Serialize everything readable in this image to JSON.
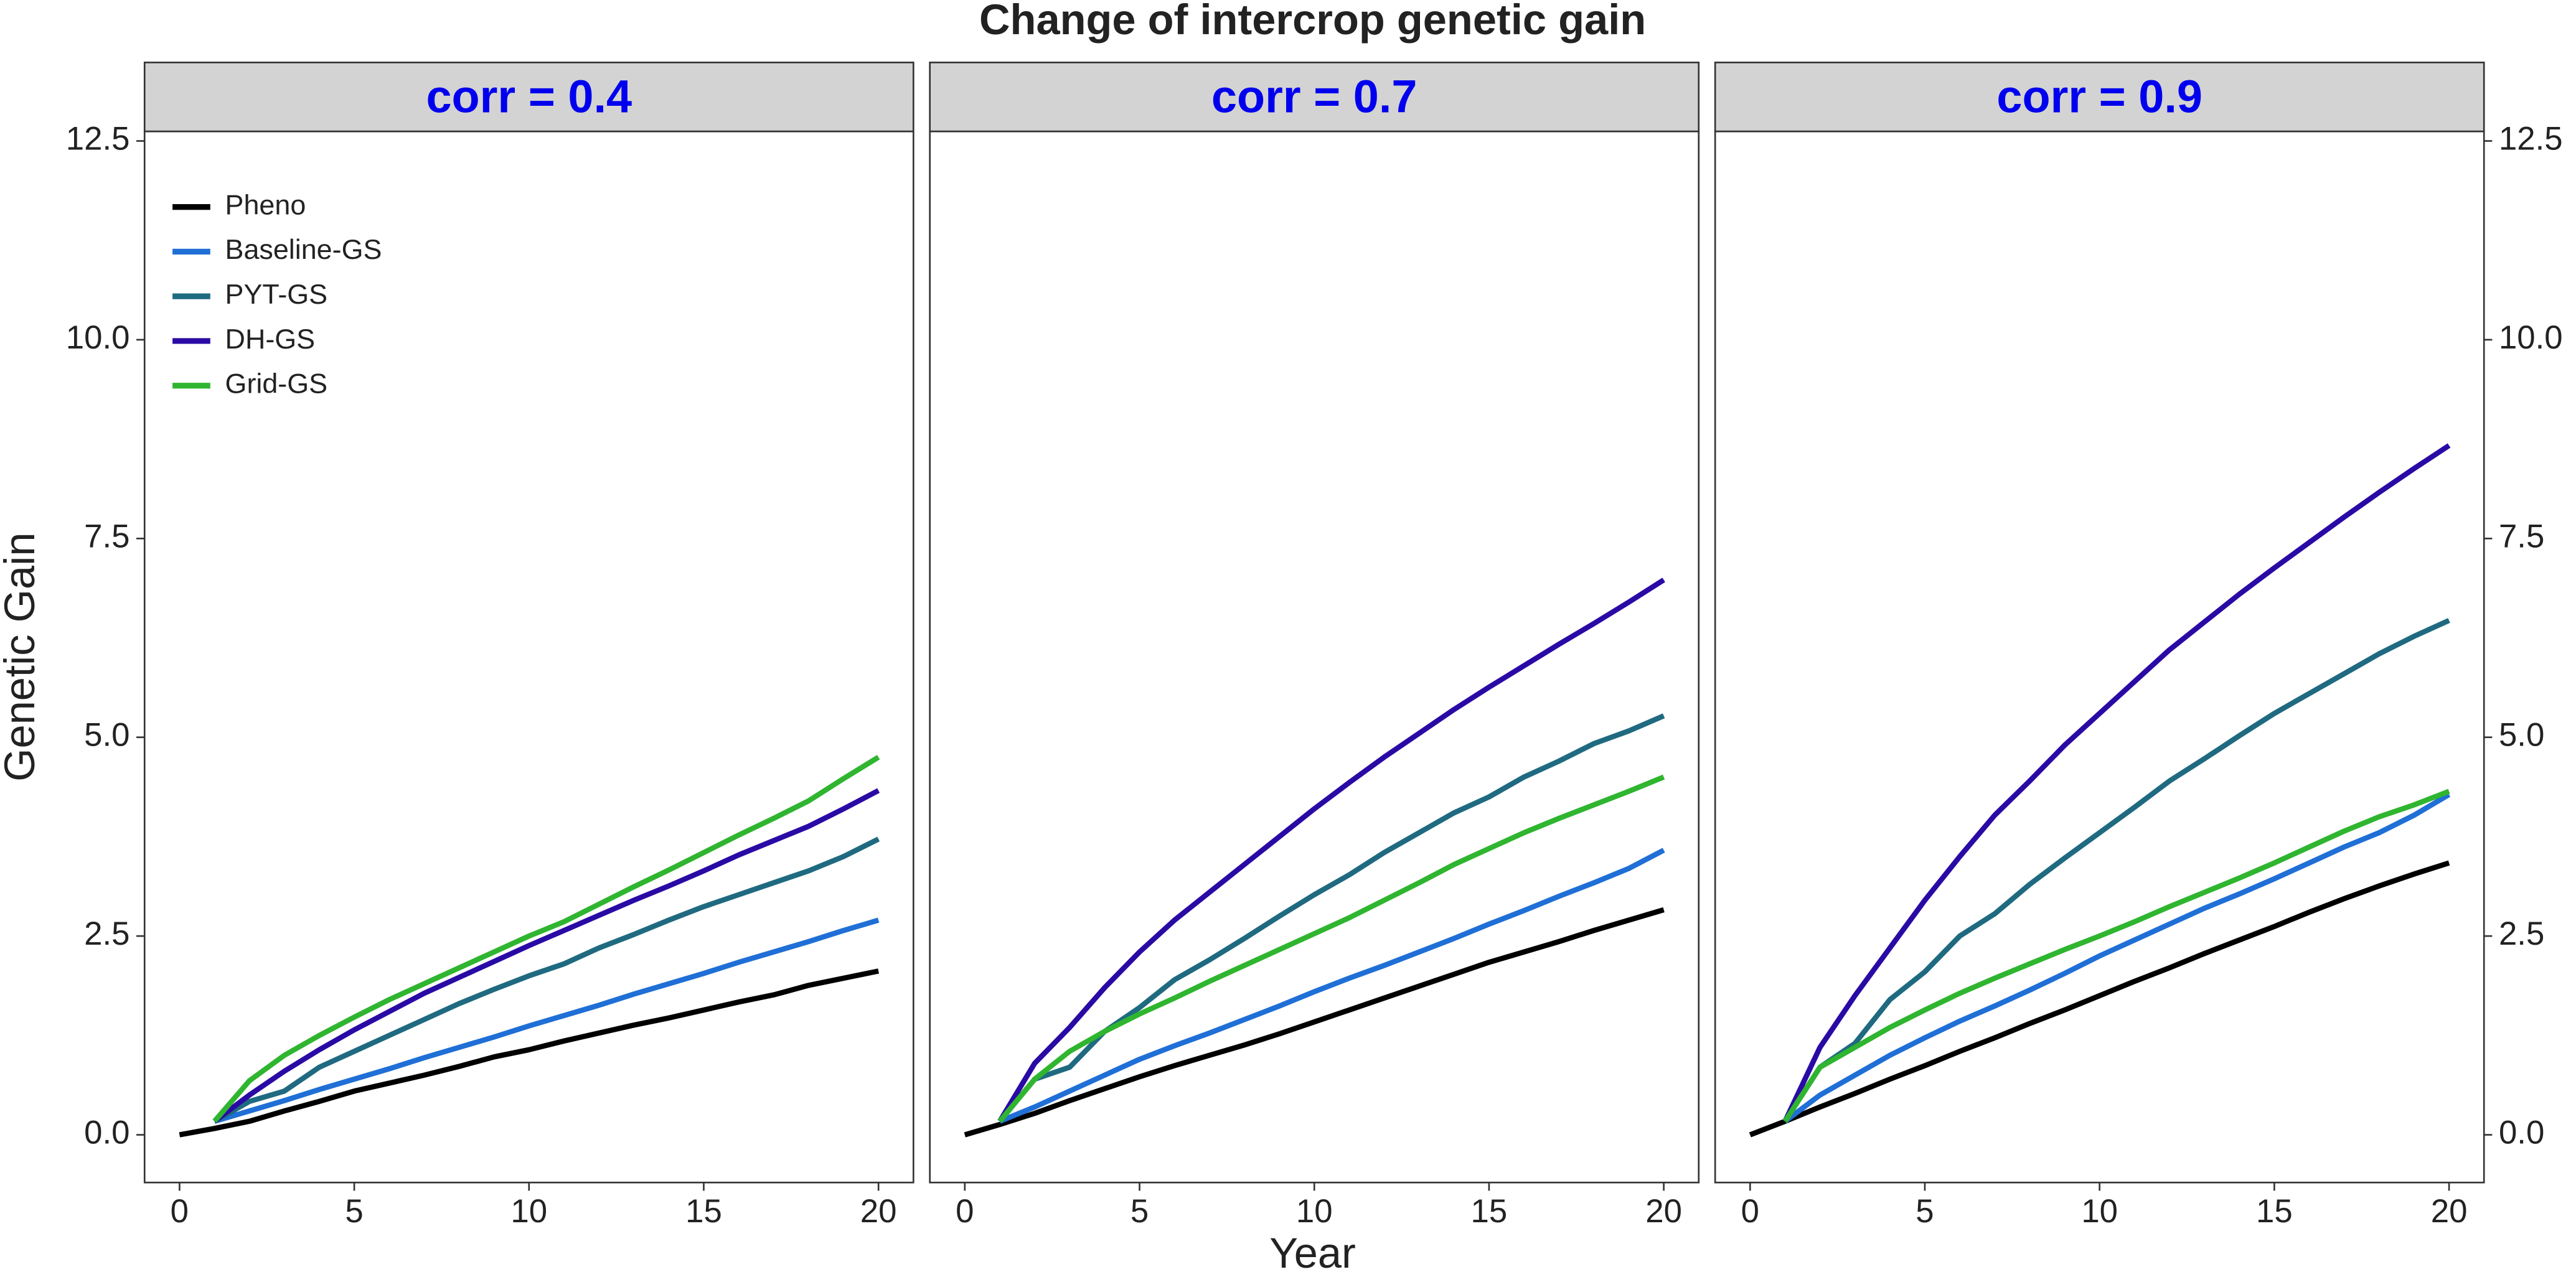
{
  "title": "Change of intercrop genetic gain",
  "xlabel": "Year",
  "ylabel": "Genetic Gain",
  "chart_data": [
    {
      "type": "line",
      "title": "corr = 0.4",
      "x": [
        0,
        1,
        2,
        3,
        4,
        5,
        6,
        7,
        8,
        9,
        10,
        11,
        12,
        13,
        14,
        15,
        16,
        17,
        18,
        19,
        20
      ],
      "xlim": [
        -1,
        21
      ],
      "ylim": [
        -0.6,
        12.62
      ],
      "xticks": [
        0,
        5,
        10,
        15,
        20
      ],
      "yticks": [
        {
          "value": 0,
          "label": "0.0"
        },
        2.5,
        {
          "value": 5,
          "label": "5.0"
        },
        7.5,
        {
          "value": 10,
          "label": "10.0"
        },
        12.5
      ],
      "series": [
        {
          "name": "Pheno",
          "color": "#000000",
          "values": [
            0,
            0.08,
            0.17,
            0.3,
            0.42,
            0.55,
            0.65,
            0.75,
            0.86,
            0.98,
            1.07,
            1.18,
            1.28,
            1.38,
            1.47,
            1.57,
            1.67,
            1.76,
            1.88,
            1.97,
            2.06
          ]
        },
        {
          "name": "Baseline-GS",
          "color": "#1f6fd6",
          "values": [
            null,
            0.17,
            0.3,
            0.43,
            0.57,
            0.7,
            0.83,
            0.97,
            1.1,
            1.23,
            1.37,
            1.5,
            1.63,
            1.77,
            1.9,
            2.03,
            2.17,
            2.3,
            2.43,
            2.57,
            2.7
          ]
        },
        {
          "name": "PYT-GS",
          "color": "#1f6a80",
          "values": [
            null,
            0.17,
            0.42,
            0.55,
            0.85,
            1.05,
            1.25,
            1.45,
            1.65,
            1.83,
            2.0,
            2.15,
            2.35,
            2.52,
            2.7,
            2.87,
            3.02,
            3.17,
            3.32,
            3.5,
            3.72
          ]
        },
        {
          "name": "DH-GS",
          "color": "#2a0aa5",
          "values": [
            null,
            0.17,
            0.5,
            0.8,
            1.07,
            1.32,
            1.55,
            1.78,
            1.98,
            2.18,
            2.38,
            2.57,
            2.76,
            2.95,
            3.13,
            3.32,
            3.52,
            3.7,
            3.88,
            4.1,
            4.33
          ]
        },
        {
          "name": "Grid-GS",
          "color": "#2fb52f",
          "values": [
            null,
            0.17,
            0.68,
            1.0,
            1.25,
            1.48,
            1.7,
            1.9,
            2.1,
            2.3,
            2.5,
            2.68,
            2.9,
            3.12,
            3.33,
            3.55,
            3.77,
            3.98,
            4.2,
            4.48,
            4.75
          ]
        }
      ]
    },
    {
      "type": "line",
      "title": "corr = 0.7",
      "x": [
        0,
        1,
        2,
        3,
        4,
        5,
        6,
        7,
        8,
        9,
        10,
        11,
        12,
        13,
        14,
        15,
        16,
        17,
        18,
        19,
        20
      ],
      "xlim": [
        -1,
        21
      ],
      "ylim": [
        -0.6,
        12.62
      ],
      "xticks": [
        0,
        5,
        10,
        15,
        20
      ],
      "series": [
        {
          "color": "#000000",
          "values": [
            0,
            0.13,
            0.27,
            0.43,
            0.58,
            0.73,
            0.87,
            1.0,
            1.13,
            1.27,
            1.42,
            1.57,
            1.72,
            1.87,
            2.02,
            2.17,
            2.3,
            2.43,
            2.57,
            2.7,
            2.83
          ]
        },
        {
          "color": "#1f6fd6",
          "values": [
            null,
            0.17,
            0.35,
            0.55,
            0.75,
            0.95,
            1.12,
            1.28,
            1.45,
            1.62,
            1.8,
            1.97,
            2.13,
            2.3,
            2.47,
            2.65,
            2.82,
            3.0,
            3.17,
            3.35,
            3.58
          ]
        },
        {
          "color": "#1f6a80",
          "values": [
            null,
            0.17,
            0.7,
            0.85,
            1.3,
            1.6,
            1.95,
            2.2,
            2.47,
            2.75,
            3.02,
            3.27,
            3.55,
            3.8,
            4.05,
            4.25,
            4.5,
            4.7,
            4.92,
            5.08,
            5.27
          ]
        },
        {
          "color": "#2a0aa5",
          "values": [
            null,
            0.17,
            0.9,
            1.35,
            1.85,
            2.3,
            2.7,
            3.05,
            3.4,
            3.75,
            4.1,
            4.43,
            4.75,
            5.05,
            5.35,
            5.63,
            5.9,
            6.17,
            6.43,
            6.7,
            6.98
          ]
        },
        {
          "color": "#2fb52f",
          "values": [
            null,
            0.17,
            0.7,
            1.05,
            1.3,
            1.52,
            1.72,
            1.93,
            2.13,
            2.33,
            2.53,
            2.73,
            2.95,
            3.17,
            3.4,
            3.6,
            3.8,
            3.98,
            4.15,
            4.32,
            4.5
          ]
        }
      ]
    },
    {
      "type": "line",
      "title": "corr = 0.9",
      "x": [
        0,
        1,
        2,
        3,
        4,
        5,
        6,
        7,
        8,
        9,
        10,
        11,
        12,
        13,
        14,
        15,
        16,
        17,
        18,
        19,
        20
      ],
      "xlim": [
        -1,
        21
      ],
      "ylim": [
        -0.6,
        12.62
      ],
      "xticks": [
        0,
        5,
        10,
        15,
        20
      ],
      "yticks": [
        {
          "value": 0,
          "label": "0.0"
        },
        2.5,
        {
          "value": 5,
          "label": "5.0"
        },
        7.5,
        {
          "value": 10,
          "label": "10.0"
        },
        12.5
      ],
      "series": [
        {
          "color": "#000000",
          "values": [
            0,
            0.17,
            0.35,
            0.52,
            0.7,
            0.87,
            1.05,
            1.22,
            1.4,
            1.57,
            1.75,
            1.93,
            2.1,
            2.28,
            2.45,
            2.62,
            2.8,
            2.97,
            3.13,
            3.28,
            3.42
          ]
        },
        {
          "color": "#1f6fd6",
          "values": [
            null,
            0.17,
            0.5,
            0.75,
            1.0,
            1.22,
            1.43,
            1.62,
            1.82,
            2.03,
            2.25,
            2.45,
            2.65,
            2.85,
            3.03,
            3.22,
            3.42,
            3.62,
            3.8,
            4.02,
            4.28
          ]
        },
        {
          "color": "#1f6a80",
          "values": [
            null,
            0.17,
            0.85,
            1.15,
            1.7,
            2.05,
            2.5,
            2.78,
            3.15,
            3.48,
            3.8,
            4.12,
            4.45,
            4.73,
            5.02,
            5.3,
            5.55,
            5.8,
            6.05,
            6.27,
            6.47
          ]
        },
        {
          "color": "#2a0aa5",
          "values": [
            null,
            0.17,
            1.1,
            1.75,
            2.35,
            2.95,
            3.5,
            4.02,
            4.45,
            4.9,
            5.3,
            5.7,
            6.1,
            6.45,
            6.8,
            7.13,
            7.45,
            7.77,
            8.08,
            8.38,
            8.67
          ]
        },
        {
          "color": "#2fb52f",
          "values": [
            null,
            0.17,
            0.85,
            1.1,
            1.35,
            1.57,
            1.78,
            1.97,
            2.15,
            2.33,
            2.5,
            2.68,
            2.87,
            3.05,
            3.23,
            3.42,
            3.62,
            3.82,
            4.0,
            4.15,
            4.32
          ]
        }
      ]
    }
  ]
}
